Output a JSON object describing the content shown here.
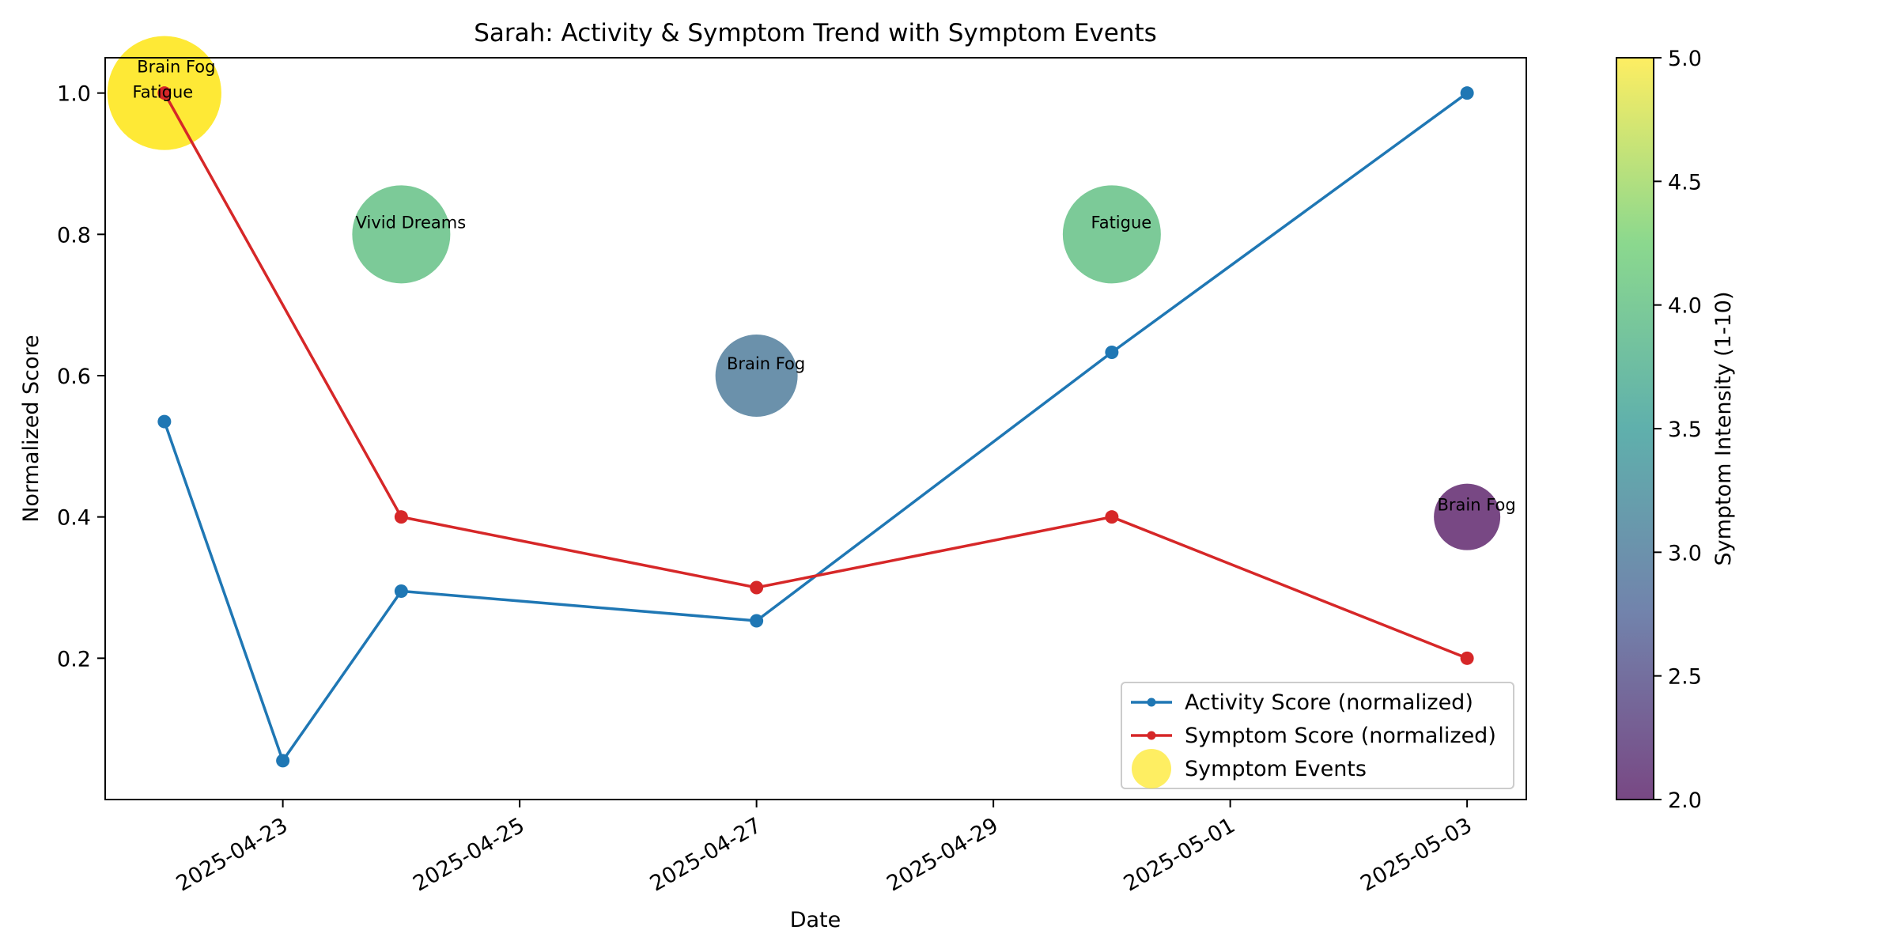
{
  "chart_data": {
    "type": "line",
    "title": "Sarah: Activity & Symptom Trend with Symptom Events",
    "xlabel": "Date",
    "ylabel": "Normalized Score",
    "x_range": [
      "2025-04-21T12:00",
      "2025-05-03T12:00"
    ],
    "ylim": [
      0.0,
      1.05
    ],
    "x_ticks": [
      "2025-04-23",
      "2025-04-25",
      "2025-04-27",
      "2025-04-29",
      "2025-05-01",
      "2025-05-03"
    ],
    "y_ticks": [
      0.2,
      0.4,
      0.6,
      0.8,
      1.0
    ],
    "grid": false,
    "legend_position": "lower-right",
    "series": [
      {
        "name": "Activity Score (normalized)",
        "color": "#1f77b4",
        "points": [
          {
            "x": "2025-04-22",
            "y": 0.535
          },
          {
            "x": "2025-04-23",
            "y": 0.055
          },
          {
            "x": "2025-04-24",
            "y": 0.295
          },
          {
            "x": "2025-04-27",
            "y": 0.253
          },
          {
            "x": "2025-04-30",
            "y": 0.633
          },
          {
            "x": "2025-05-03",
            "y": 1.0
          }
        ]
      },
      {
        "name": "Symptom Score (normalized)",
        "color": "#d62728",
        "points": [
          {
            "x": "2025-04-22",
            "y": 1.0
          },
          {
            "x": "2025-04-24",
            "y": 0.4
          },
          {
            "x": "2025-04-27",
            "y": 0.3
          },
          {
            "x": "2025-04-30",
            "y": 0.4
          },
          {
            "x": "2025-05-03",
            "y": 0.2
          }
        ]
      }
    ],
    "events": {
      "name": "Symptom Events",
      "items": [
        {
          "x": "2025-04-22",
          "y": 1.0,
          "intensity": 5,
          "label": "Fatigue"
        },
        {
          "x": "2025-04-22",
          "y": 1.0,
          "intensity": 5,
          "label": "Brain Fog"
        },
        {
          "x": "2025-04-24",
          "y": 0.8,
          "intensity": 4,
          "label": "Vivid Dreams"
        },
        {
          "x": "2025-04-27",
          "y": 0.6,
          "intensity": 3,
          "label": "Brain Fog"
        },
        {
          "x": "2025-04-30",
          "y": 0.8,
          "intensity": 4,
          "label": "Fatigue"
        },
        {
          "x": "2025-05-03",
          "y": 0.4,
          "intensity": 2,
          "label": "Brain Fog"
        }
      ]
    },
    "colorbar": {
      "label": "Symptom Intensity (1-10)",
      "range": [
        2.0,
        5.0
      ],
      "ticks": [
        "2.0",
        "2.5",
        "3.0",
        "3.5",
        "4.0",
        "4.5",
        "5.0"
      ],
      "colormap": "viridis"
    }
  }
}
